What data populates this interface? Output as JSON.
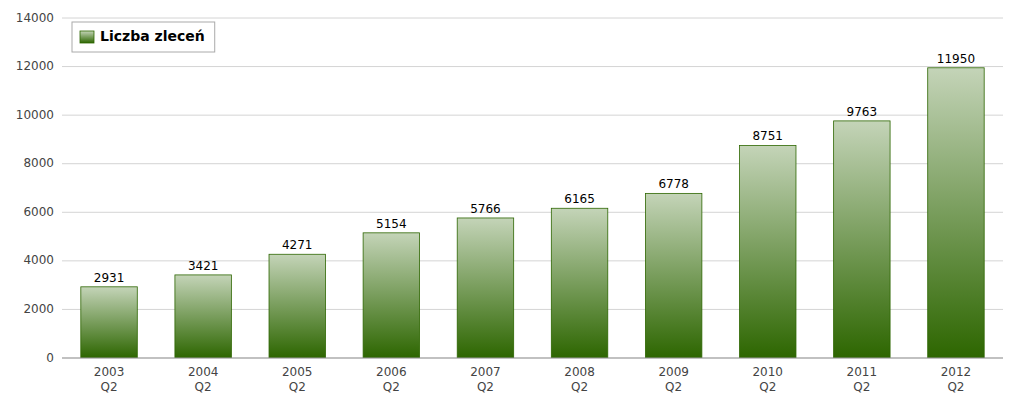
{
  "chart_data": {
    "type": "bar",
    "categories": [
      "2003\nQ2",
      "2004\nQ2",
      "2005\nQ2",
      "2006\nQ2",
      "2007\nQ2",
      "2008\nQ2",
      "2009\nQ2",
      "2010\nQ2",
      "2011\nQ2",
      "2012\nQ2"
    ],
    "series": [
      {
        "name": "Liczba zleceń",
        "color": "#2d6600",
        "values": [
          2931,
          3421,
          4271,
          5154,
          5766,
          6165,
          6778,
          8751,
          9763,
          11950
        ]
      }
    ],
    "ylim": [
      0,
      14000
    ],
    "yticks": [
      0,
      2000,
      4000,
      6000,
      8000,
      10000,
      12000,
      14000
    ],
    "grid": true,
    "legend": "upper-left",
    "data_labels": true
  }
}
